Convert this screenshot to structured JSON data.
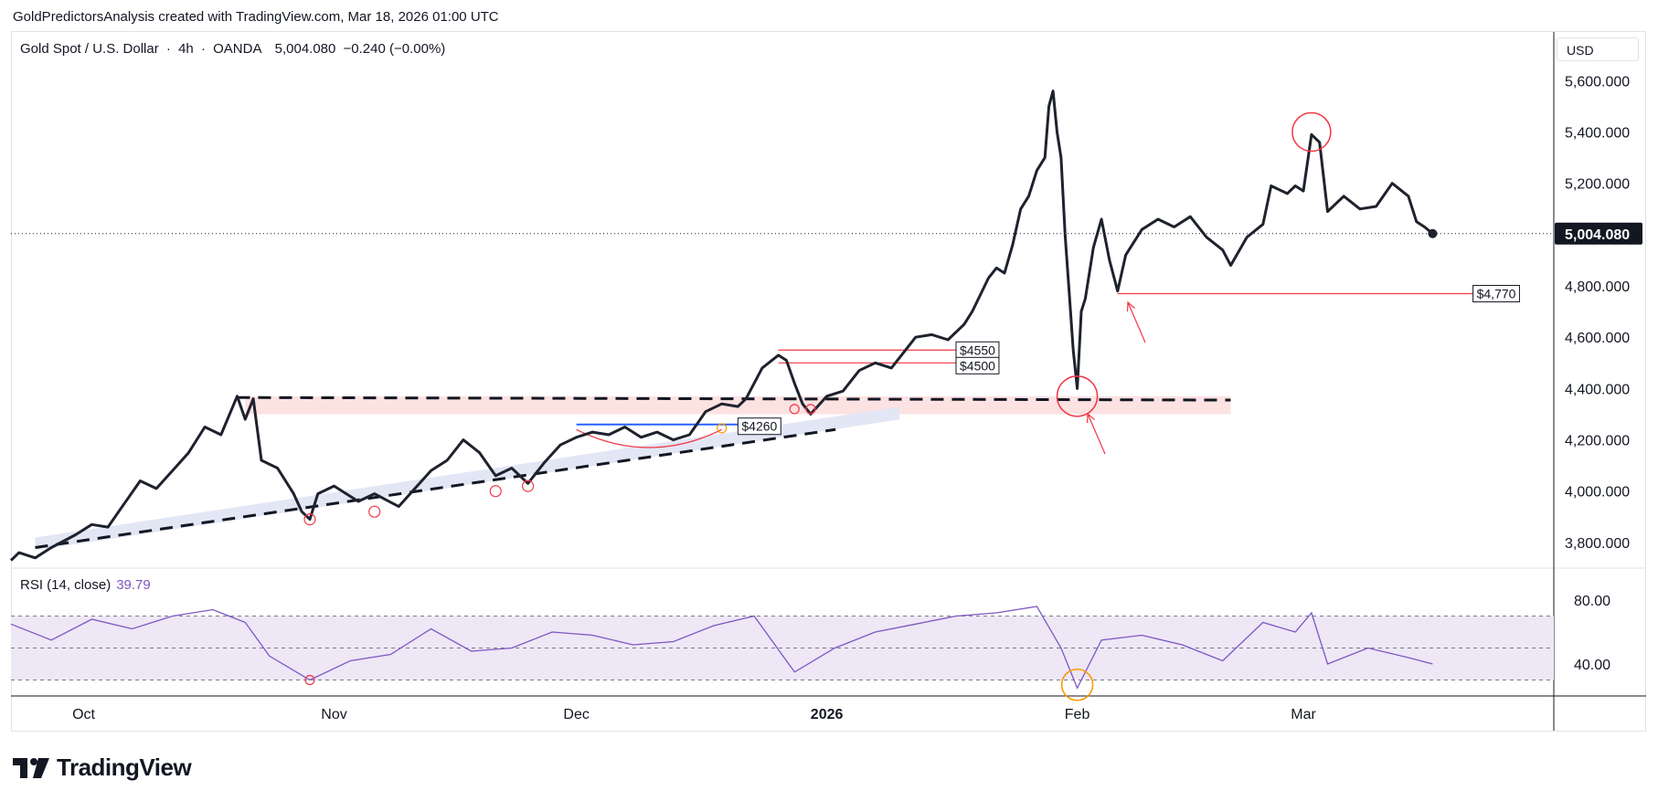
{
  "header": {
    "credit": "GoldPredictorsAnalysis created with TradingView.com, Mar 18, 2026 01:00 UTC"
  },
  "symbol": {
    "name": "Gold Spot / U.S. Dollar",
    "interval": "4h",
    "broker": "OANDA",
    "last": "5,004.080",
    "change": "−0.240 (−0.00%)",
    "separator": "·"
  },
  "currency": "USD",
  "price_badge": "5,004.080",
  "rsi": {
    "label": "RSI (14, close)",
    "value": "39.79"
  },
  "brand": "TradingView",
  "colors": {
    "price_line": "#1e222d",
    "rsi_line": "#7e57c2",
    "rsi_band": "#ede7f6",
    "annotation_red": "#f23645",
    "annotation_blue": "#2962ff",
    "annotation_orange": "#ff9800",
    "resistance_zone": "#fde2e2",
    "support_zone": "#e3e6f5",
    "badge_bg": "#131722"
  },
  "chart_data": {
    "type": "line",
    "title": "Gold Spot / U.S. Dollar · 4h · OANDA",
    "y_axis": {
      "ticks": [
        "5,600.000",
        "5,400.000",
        "5,200.000",
        "5,000.000",
        "4,800.000",
        "4,600.000",
        "4,400.000",
        "4,200.000",
        "4,000.000",
        "3,800.000"
      ],
      "ylim": [
        3700,
        5790
      ]
    },
    "x_axis": {
      "ticks": [
        {
          "label": "Oct",
          "date": "2025-10-01"
        },
        {
          "label": "Nov",
          "date": "2025-11-01"
        },
        {
          "label": "Dec",
          "date": "2025-12-01"
        },
        {
          "label": "2026",
          "date": "2026-01-01"
        },
        {
          "label": "Feb",
          "date": "2026-02-01"
        },
        {
          "label": "Mar",
          "date": "2026-03-01"
        }
      ],
      "xlim": [
        "2025-09-22",
        "2026-04-01"
      ]
    },
    "series": [
      {
        "values_points": [
          [
            "2025-09-22",
            3730
          ],
          [
            "2025-09-23",
            3760
          ],
          [
            "2025-09-25",
            3740
          ],
          [
            "2025-09-27",
            3780
          ],
          [
            "2025-09-30",
            3830
          ],
          [
            "2025-10-02",
            3870
          ],
          [
            "2025-10-04",
            3860
          ],
          [
            "2025-10-06",
            3950
          ],
          [
            "2025-10-08",
            4040
          ],
          [
            "2025-10-10",
            4010
          ],
          [
            "2025-10-12",
            4080
          ],
          [
            "2025-10-14",
            4150
          ],
          [
            "2025-10-16",
            4250
          ],
          [
            "2025-10-18",
            4220
          ],
          [
            "2025-10-20",
            4370
          ],
          [
            "2025-10-21",
            4280
          ],
          [
            "2025-10-22",
            4360
          ],
          [
            "2025-10-23",
            4120
          ],
          [
            "2025-10-25",
            4090
          ],
          [
            "2025-10-27",
            3990
          ],
          [
            "2025-10-28",
            3920
          ],
          [
            "2025-10-29",
            3890
          ],
          [
            "2025-10-30",
            3990
          ],
          [
            "2025-11-01",
            4020
          ],
          [
            "2025-11-03",
            3980
          ],
          [
            "2025-11-04",
            3960
          ],
          [
            "2025-11-06",
            3990
          ],
          [
            "2025-11-09",
            3940
          ],
          [
            "2025-11-11",
            4010
          ],
          [
            "2025-11-13",
            4080
          ],
          [
            "2025-11-15",
            4120
          ],
          [
            "2025-11-17",
            4200
          ],
          [
            "2025-11-19",
            4150
          ],
          [
            "2025-11-21",
            4060
          ],
          [
            "2025-11-23",
            4090
          ],
          [
            "2025-11-25",
            4030
          ],
          [
            "2025-11-27",
            4110
          ],
          [
            "2025-11-29",
            4180
          ],
          [
            "2025-12-01",
            4210
          ],
          [
            "2025-12-03",
            4230
          ],
          [
            "2025-12-05",
            4220
          ],
          [
            "2025-12-07",
            4250
          ],
          [
            "2025-12-09",
            4210
          ],
          [
            "2025-12-11",
            4230
          ],
          [
            "2025-12-13",
            4200
          ],
          [
            "2025-12-15",
            4220
          ],
          [
            "2025-12-17",
            4310
          ],
          [
            "2025-12-19",
            4340
          ],
          [
            "2025-12-21",
            4330
          ],
          [
            "2025-12-22",
            4360
          ],
          [
            "2025-12-24",
            4480
          ],
          [
            "2025-12-26",
            4530
          ],
          [
            "2025-12-27",
            4510
          ],
          [
            "2025-12-28",
            4420
          ],
          [
            "2025-12-29",
            4340
          ],
          [
            "2025-12-30",
            4300
          ],
          [
            "2026-01-01",
            4370
          ],
          [
            "2026-01-03",
            4390
          ],
          [
            "2026-01-05",
            4470
          ],
          [
            "2026-01-07",
            4500
          ],
          [
            "2026-01-09",
            4480
          ],
          [
            "2026-01-12",
            4600
          ],
          [
            "2026-01-14",
            4610
          ],
          [
            "2026-01-16",
            4590
          ],
          [
            "2026-01-18",
            4650
          ],
          [
            "2026-01-19",
            4700
          ],
          [
            "2026-01-21",
            4830
          ],
          [
            "2026-01-22",
            4870
          ],
          [
            "2026-01-23",
            4850
          ],
          [
            "2026-01-24",
            4960
          ],
          [
            "2026-01-25",
            5100
          ],
          [
            "2026-01-26",
            5150
          ],
          [
            "2026-01-27",
            5250
          ],
          [
            "2026-01-28",
            5300
          ],
          [
            "2026-01-28T12",
            5500
          ],
          [
            "2026-01-29",
            5560
          ],
          [
            "2026-01-29T12",
            5400
          ],
          [
            "2026-01-30",
            5300
          ],
          [
            "2026-01-30T12",
            5000
          ],
          [
            "2026-01-31",
            4780
          ],
          [
            "2026-01-31T12",
            4550
          ],
          [
            "2026-02-01",
            4400
          ],
          [
            "2026-02-01T12",
            4700
          ],
          [
            "2026-02-02",
            4750
          ],
          [
            "2026-02-03",
            4950
          ],
          [
            "2026-02-04",
            5060
          ],
          [
            "2026-02-05",
            4900
          ],
          [
            "2026-02-06",
            4780
          ],
          [
            "2026-02-07",
            4920
          ],
          [
            "2026-02-09",
            5020
          ],
          [
            "2026-02-11",
            5060
          ],
          [
            "2026-02-13",
            5030
          ],
          [
            "2026-02-15",
            5070
          ],
          [
            "2026-02-17",
            4990
          ],
          [
            "2026-02-19",
            4940
          ],
          [
            "2026-02-20",
            4880
          ],
          [
            "2026-02-22",
            4990
          ],
          [
            "2026-02-24",
            5040
          ],
          [
            "2026-02-25",
            5190
          ],
          [
            "2026-02-27",
            5160
          ],
          [
            "2026-02-28",
            5190
          ],
          [
            "2026-03-01",
            5170
          ],
          [
            "2026-03-02",
            5390
          ],
          [
            "2026-03-03",
            5360
          ],
          [
            "2026-03-04",
            5090
          ],
          [
            "2026-03-06",
            5150
          ],
          [
            "2026-03-08",
            5100
          ],
          [
            "2026-03-10",
            5110
          ],
          [
            "2026-03-12",
            5200
          ],
          [
            "2026-03-14",
            5150
          ],
          [
            "2026-03-15",
            5050
          ],
          [
            "2026-03-16",
            5030
          ],
          [
            "2026-03-17",
            5004
          ]
        ]
      }
    ],
    "rsi_series": {
      "name": "RSI (14, close)",
      "ylim": [
        20,
        100
      ],
      "levels": [
        70,
        50,
        30
      ],
      "level_ticks": [
        "80.00",
        "40.00"
      ],
      "points": [
        [
          "2025-09-22",
          65
        ],
        [
          "2025-09-27",
          55
        ],
        [
          "2025-10-02",
          68
        ],
        [
          "2025-10-07",
          62
        ],
        [
          "2025-10-12",
          70
        ],
        [
          "2025-10-17",
          74
        ],
        [
          "2025-10-21",
          66
        ],
        [
          "2025-10-24",
          45
        ],
        [
          "2025-10-29",
          30
        ],
        [
          "2025-11-03",
          42
        ],
        [
          "2025-11-08",
          46
        ],
        [
          "2025-11-13",
          62
        ],
        [
          "2025-11-18",
          48
        ],
        [
          "2025-11-23",
          50
        ],
        [
          "2025-11-28",
          60
        ],
        [
          "2025-12-03",
          58
        ],
        [
          "2025-12-08",
          52
        ],
        [
          "2025-12-13",
          54
        ],
        [
          "2025-12-18",
          64
        ],
        [
          "2025-12-23",
          70
        ],
        [
          "2025-12-28",
          35
        ],
        [
          "2026-01-02",
          50
        ],
        [
          "2026-01-07",
          60
        ],
        [
          "2026-01-12",
          65
        ],
        [
          "2026-01-17",
          70
        ],
        [
          "2026-01-22",
          72
        ],
        [
          "2026-01-27",
          76
        ],
        [
          "2026-01-30",
          50
        ],
        [
          "2026-02-01",
          25
        ],
        [
          "2026-02-04",
          55
        ],
        [
          "2026-02-09",
          58
        ],
        [
          "2026-02-14",
          52
        ],
        [
          "2026-02-19",
          42
        ],
        [
          "2026-02-24",
          66
        ],
        [
          "2026-02-28",
          60
        ],
        [
          "2026-03-02",
          72
        ],
        [
          "2026-03-04",
          40
        ],
        [
          "2026-03-09",
          50
        ],
        [
          "2026-03-14",
          44
        ],
        [
          "2026-03-17",
          40
        ]
      ]
    },
    "annotations": {
      "price_labels": [
        "$4550",
        "$4500",
        "$4260",
        "$4,770"
      ],
      "levels": [
        4550,
        4500,
        4260,
        4770
      ]
    }
  }
}
